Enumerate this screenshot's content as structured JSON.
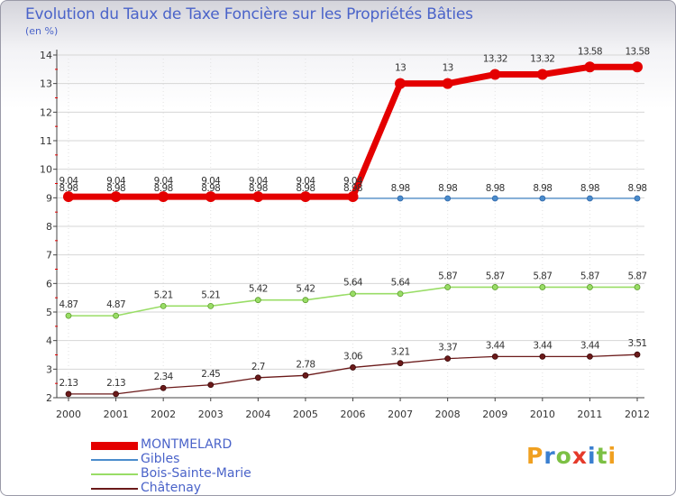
{
  "chart_data": {
    "type": "line",
    "title": "Evolution du Taux de Taxe Foncière sur les Propriétés Bâties",
    "subtitle": "(en %)",
    "x": [
      "2000",
      "2001",
      "2002",
      "2003",
      "2004",
      "2005",
      "2006",
      "2007",
      "2008",
      "2009",
      "2010",
      "2011",
      "2012"
    ],
    "ylim": [
      2,
      14
    ],
    "yticks": [
      2,
      3,
      4,
      5,
      6,
      7,
      8,
      9,
      10,
      11,
      12,
      13,
      14
    ],
    "series": [
      {
        "name": "MONTMELARD",
        "color": "#e40000",
        "values": [
          9.04,
          9.04,
          9.04,
          9.04,
          9.04,
          9.04,
          9.04,
          13,
          13,
          13.32,
          13.32,
          13.58,
          13.58
        ],
        "labels": [
          "9.04",
          "9.04",
          "9.04",
          "9.04",
          "9.04",
          "9.04",
          "9.04",
          "13",
          "13",
          "13.32",
          "13.32",
          "13.58",
          "13.58"
        ]
      },
      {
        "name": "Gibles",
        "color": "#4a8ccc",
        "values": [
          8.98,
          8.98,
          8.98,
          8.98,
          8.98,
          8.98,
          8.98,
          8.98,
          8.98,
          8.98,
          8.98,
          8.98,
          8.98
        ],
        "labels": [
          "8.98",
          "8.98",
          "8.98",
          "8.98",
          "8.98",
          "8.98",
          "8.98",
          "8.98",
          "8.98",
          "8.98",
          "8.98",
          "8.98",
          "8.98"
        ]
      },
      {
        "name": "Bois-Sainte-Marie",
        "color": "#99dd66",
        "values": [
          4.87,
          4.87,
          5.21,
          5.21,
          5.42,
          5.42,
          5.64,
          5.64,
          5.87,
          5.87,
          5.87,
          5.87,
          5.87
        ],
        "labels": [
          "4.87",
          "4.87",
          "5.21",
          "5.21",
          "5.42",
          "5.42",
          "5.64",
          "5.64",
          "5.87",
          "5.87",
          "5.87",
          "5.87",
          "5.87"
        ]
      },
      {
        "name": "Châtenay",
        "color": "#6b1a1a",
        "values": [
          2.13,
          2.13,
          2.34,
          2.45,
          2.7,
          2.78,
          3.06,
          3.21,
          3.37,
          3.44,
          3.44,
          3.44,
          3.51
        ],
        "labels": [
          "2.13",
          "2.13",
          "2.34",
          "2.45",
          "2.7",
          "2.78",
          "3.06",
          "3.21",
          "3.37",
          "3.44",
          "3.44",
          "3.44",
          "3.51"
        ]
      }
    ],
    "legend_position": "bottom-left"
  },
  "logo": {
    "letters": [
      "P",
      "r",
      "o",
      "x",
      "i",
      "t",
      "i"
    ],
    "colors": [
      "#f0a020",
      "#3a7fd0",
      "#7cc044",
      "#e53a2a",
      "#3a7fd0",
      "#7cc044",
      "#f0a020"
    ]
  }
}
